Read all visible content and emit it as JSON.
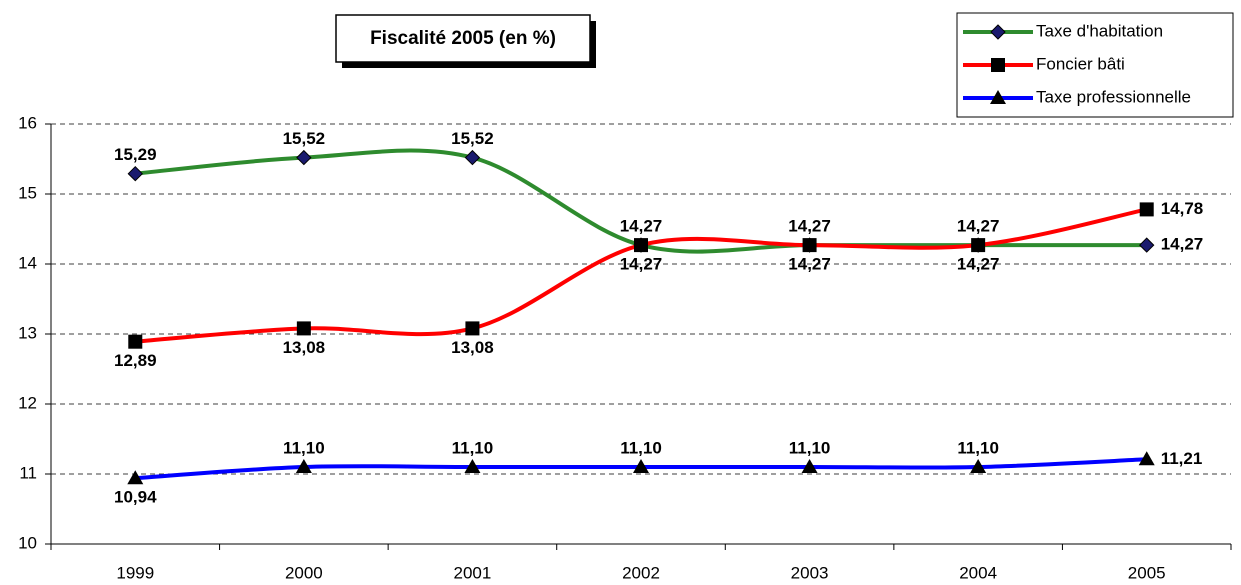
{
  "chart_data": {
    "type": "line",
    "title": "Fiscalité 2005 (en %)",
    "categories": [
      "1999",
      "2000",
      "2001",
      "2002",
      "2003",
      "2004",
      "2005"
    ],
    "series": [
      {
        "name": "Taxe d'habitation",
        "color": "#2e8b2e",
        "marker": "diamond",
        "marker_color": "#1a1a6e",
        "values": [
          15.29,
          15.52,
          15.52,
          14.27,
          14.27,
          14.27,
          14.27
        ],
        "value_labels": [
          "15,29",
          "15,52",
          "15,52",
          "14,27",
          "14,27",
          "14,27",
          "14,27"
        ]
      },
      {
        "name": "Foncier bâti",
        "color": "#ff0000",
        "marker": "square",
        "marker_color": "#000000",
        "values": [
          12.89,
          13.08,
          13.08,
          14.27,
          14.27,
          14.27,
          14.78
        ],
        "value_labels": [
          "12,89",
          "13,08",
          "13,08",
          "14,27",
          "14,27",
          "14,27",
          "14,78"
        ]
      },
      {
        "name": "Taxe professionnelle",
        "color": "#0000ff",
        "marker": "triangle",
        "marker_color": "#000000",
        "values": [
          10.94,
          11.1,
          11.1,
          11.1,
          11.1,
          11.1,
          11.21
        ],
        "value_labels": [
          "10,94",
          "11,10",
          "11,10",
          "11,10",
          "11,10",
          "11,10",
          "11,21"
        ]
      }
    ],
    "ylim": [
      10,
      16
    ],
    "yticks": [
      10,
      11,
      12,
      13,
      14,
      15,
      16
    ],
    "grid": true,
    "smooth": true,
    "legend": "top-right"
  }
}
